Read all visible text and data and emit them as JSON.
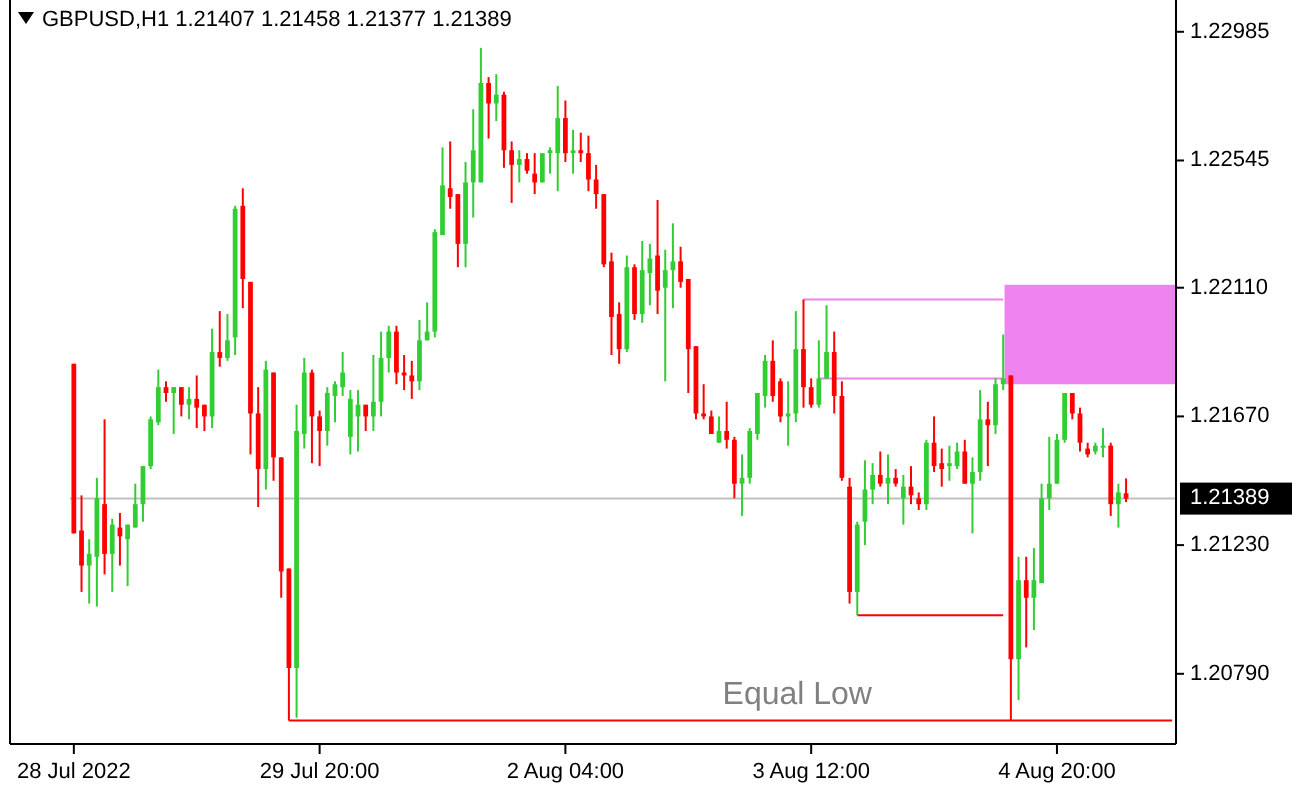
{
  "chart_data": {
    "type": "candlestick",
    "title": "GBPUSD,H1  1.21407 1.21458 1.21377 1.21389",
    "categories": [
      "28 Jul 2022",
      null,
      null,
      null,
      null,
      null,
      null,
      null,
      null,
      null,
      null,
      null,
      null,
      null,
      null,
      null,
      null,
      null,
      null,
      null,
      null,
      null,
      null,
      null,
      null,
      null,
      null,
      null,
      null,
      null,
      null,
      null,
      "29 Jul 20:00",
      null,
      null,
      null,
      null,
      null,
      null,
      null,
      null,
      null,
      null,
      null,
      null,
      null,
      null,
      null,
      null,
      null,
      null,
      null,
      null,
      null,
      null,
      null,
      null,
      null,
      null,
      null,
      null,
      null,
      null,
      null,
      "2 Aug 04:00",
      null,
      null,
      null,
      null,
      null,
      null,
      null,
      null,
      null,
      null,
      null,
      null,
      null,
      null,
      null,
      null,
      null,
      null,
      null,
      null,
      null,
      null,
      null,
      null,
      null,
      null,
      null,
      null,
      null,
      null,
      null,
      "3 Aug 12:00",
      null,
      null,
      null,
      null,
      null,
      null,
      null,
      null,
      null,
      null,
      null,
      null,
      null,
      null,
      null,
      null,
      null,
      null,
      null,
      null,
      null,
      null,
      null,
      null,
      null,
      null,
      null,
      null,
      null,
      null,
      null,
      "4 Aug 20:00",
      null,
      null,
      null,
      null,
      null,
      null,
      null,
      null,
      null,
      null,
      null,
      null,
      null,
      null,
      null
    ],
    "ohlc": [
      [
        1.2185,
        1.2185,
        1.2127,
        1.2127
      ],
      [
        1.2128,
        1.214,
        1.2107,
        1.2116
      ],
      [
        1.2116,
        1.2125,
        1.2103,
        1.212
      ],
      [
        1.2119,
        1.2146,
        1.2102,
        1.2139
      ],
      [
        1.2137,
        1.2166,
        1.2113,
        1.212
      ],
      [
        1.212,
        1.2132,
        1.2107,
        1.213
      ],
      [
        1.2129,
        1.2134,
        1.2116,
        1.2126
      ],
      [
        1.2125,
        1.213,
        1.2109,
        1.213
      ],
      [
        1.2129,
        1.2144,
        1.2129,
        1.2137
      ],
      [
        1.2137,
        1.215,
        1.2131,
        1.215
      ],
      [
        1.215,
        1.2167,
        1.2149,
        1.2166
      ],
      [
        1.2165,
        1.2183,
        1.2164,
        1.2177
      ],
      [
        1.2177,
        1.2179,
        1.2172,
        1.2175
      ],
      [
        1.2175,
        1.2177,
        1.2161,
        1.2177
      ],
      [
        1.2177,
        1.2177,
        1.2167,
        1.2171
      ],
      [
        1.2171,
        1.2177,
        1.2166,
        1.2173
      ],
      [
        1.2173,
        1.2181,
        1.2163,
        1.217
      ],
      [
        1.2171,
        1.2171,
        1.2162,
        1.2167
      ],
      [
        1.2167,
        1.2197,
        1.2163,
        1.2189
      ],
      [
        1.2189,
        1.2203,
        1.2184,
        1.2187
      ],
      [
        1.2187,
        1.2202,
        1.2186,
        1.2193
      ],
      [
        1.2194,
        1.2239,
        1.2188,
        1.2238
      ],
      [
        1.2239,
        1.2245,
        1.2204,
        1.2214
      ],
      [
        1.2213,
        1.2213,
        1.2154,
        1.2168
      ],
      [
        1.2168,
        1.2177,
        1.2136,
        1.2149
      ],
      [
        1.2149,
        1.2186,
        1.2142,
        1.2183
      ],
      [
        1.2182,
        1.2182,
        1.2145,
        1.2153
      ],
      [
        1.2153,
        1.2153,
        1.2105,
        1.2114
      ],
      [
        1.2115,
        1.2115,
        1.2063,
        1.2081
      ],
      [
        1.2081,
        1.2171,
        1.2064,
        1.2162
      ],
      [
        1.2161,
        1.2187,
        1.2156,
        1.2182
      ],
      [
        1.2182,
        1.2183,
        1.2151,
        1.2167
      ],
      [
        1.2167,
        1.2169,
        1.215,
        1.2162
      ],
      [
        1.2162,
        1.2177,
        1.2157,
        1.2175
      ],
      [
        1.2174,
        1.2179,
        1.2165,
        1.2178
      ],
      [
        1.2177,
        1.2189,
        1.2174,
        1.2182
      ],
      [
        1.216,
        1.2176,
        1.2154,
        1.2173
      ],
      [
        1.2167,
        1.2176,
        1.2155,
        1.2171
      ],
      [
        1.2171,
        1.2171,
        1.2162,
        1.2167
      ],
      [
        1.2167,
        1.2188,
        1.2162,
        1.2172
      ],
      [
        1.2172,
        1.2196,
        1.2167,
        1.2187
      ],
      [
        1.2187,
        1.2198,
        1.2182,
        1.2196
      ],
      [
        1.2196,
        1.2198,
        1.2178,
        1.2182
      ],
      [
        1.2182,
        1.2188,
        1.2176,
        1.2181
      ],
      [
        1.2181,
        1.2186,
        1.2173,
        1.2179
      ],
      [
        1.2179,
        1.22,
        1.2176,
        1.2193
      ],
      [
        1.2193,
        1.2206,
        1.2193,
        1.2196
      ],
      [
        1.2196,
        1.2231,
        1.2194,
        1.223
      ],
      [
        1.2229,
        1.2259,
        1.2229,
        1.2246
      ],
      [
        1.2245,
        1.2261,
        1.2238,
        1.2242
      ],
      [
        1.2243,
        1.2243,
        1.2218,
        1.2226
      ],
      [
        1.2226,
        1.2254,
        1.2218,
        1.2247
      ],
      [
        1.2247,
        1.2272,
        1.2235,
        1.2258
      ],
      [
        1.2247,
        1.2293,
        1.2247,
        1.2281
      ],
      [
        1.2281,
        1.2283,
        1.2262,
        1.2274
      ],
      [
        1.2274,
        1.2284,
        1.2268,
        1.2277
      ],
      [
        1.2277,
        1.2278,
        1.2252,
        1.2258
      ],
      [
        1.2258,
        1.2261,
        1.224,
        1.2253
      ],
      [
        1.2253,
        1.2258,
        1.2247,
        1.2255
      ],
      [
        1.2255,
        1.2257,
        1.225,
        1.2251
      ],
      [
        1.225,
        1.2257,
        1.2243,
        1.2247
      ],
      [
        1.2247,
        1.2257,
        1.2247,
        1.2257
      ],
      [
        1.2257,
        1.2259,
        1.225,
        1.2258
      ],
      [
        1.2257,
        1.228,
        1.2244,
        1.2269
      ],
      [
        1.2269,
        1.2275,
        1.2254,
        1.2257
      ],
      [
        1.2257,
        1.2265,
        1.225,
        1.2258
      ],
      [
        1.2258,
        1.2264,
        1.2254,
        1.2257
      ],
      [
        1.2257,
        1.2263,
        1.2244,
        1.2248
      ],
      [
        1.2248,
        1.2253,
        1.2238,
        1.2243
      ],
      [
        1.2243,
        1.2243,
        1.2218,
        1.2219
      ],
      [
        1.222,
        1.2223,
        1.2188,
        1.2201
      ],
      [
        1.2202,
        1.2206,
        1.2185,
        1.219
      ],
      [
        1.219,
        1.2222,
        1.2189,
        1.2218
      ],
      [
        1.2218,
        1.2219,
        1.22,
        1.2202
      ],
      [
        1.2202,
        1.2227,
        1.2199,
        1.2217
      ],
      [
        1.2216,
        1.2226,
        1.2205,
        1.2221
      ],
      [
        1.2222,
        1.2241,
        1.2202,
        1.221
      ],
      [
        1.2211,
        1.2224,
        1.2179,
        1.2217
      ],
      [
        1.2217,
        1.2233,
        1.2204,
        1.222
      ],
      [
        1.222,
        1.2225,
        1.2211,
        1.2213
      ],
      [
        1.2214,
        1.2214,
        1.2175,
        1.219
      ],
      [
        1.2191,
        1.2191,
        1.2166,
        1.2168
      ],
      [
        1.2168,
        1.2178,
        1.2166,
        1.2167
      ],
      [
        1.2167,
        1.2169,
        1.2161,
        1.2161
      ],
      [
        1.2158,
        1.2167,
        1.2158,
        1.2162
      ],
      [
        1.2162,
        1.2172,
        1.2156,
        1.2159
      ],
      [
        1.2159,
        1.216,
        1.2139,
        1.2144
      ],
      [
        1.2144,
        1.2154,
        1.2133,
        1.2146
      ],
      [
        1.2146,
        1.2163,
        1.2144,
        1.2162
      ],
      [
        1.2161,
        1.2175,
        1.2159,
        1.2175
      ],
      [
        1.2174,
        1.2188,
        1.217,
        1.2186
      ],
      [
        1.2186,
        1.2193,
        1.2172,
        1.2174
      ],
      [
        1.2179,
        1.218,
        1.2165,
        1.2167
      ],
      [
        1.2167,
        1.2179,
        1.2157,
        1.2168
      ],
      [
        1.2168,
        1.2203,
        1.2165,
        1.219
      ],
      [
        1.219,
        1.2207,
        1.217,
        1.2177
      ],
      [
        1.2177,
        1.218,
        1.217,
        1.2171
      ],
      [
        1.2171,
        1.2193,
        1.217,
        1.218
      ],
      [
        1.218,
        1.2205,
        1.218,
        1.2189
      ],
      [
        1.2189,
        1.2196,
        1.2168,
        1.2174
      ],
      [
        1.2174,
        1.2179,
        1.2145,
        1.2146
      ],
      [
        1.2143,
        1.2146,
        1.2103,
        1.2107
      ],
      [
        1.2107,
        1.2131,
        1.2099,
        1.213
      ],
      [
        1.2131,
        1.2152,
        1.2123,
        1.2142
      ],
      [
        1.2142,
        1.2151,
        1.2137,
        1.2147
      ],
      [
        1.2147,
        1.2155,
        1.2143,
        1.2144
      ],
      [
        1.2144,
        1.2154,
        1.2137,
        1.2146
      ],
      [
        1.2146,
        1.2149,
        1.2143,
        1.2144
      ],
      [
        1.2139,
        1.2147,
        1.213,
        1.2143
      ],
      [
        1.2143,
        1.215,
        1.2137,
        1.214
      ],
      [
        1.2139,
        1.2141,
        1.2135,
        1.2137
      ],
      [
        1.2137,
        1.2159,
        1.2135,
        1.2158
      ],
      [
        1.2158,
        1.2167,
        1.2148,
        1.215
      ],
      [
        1.2151,
        1.2156,
        1.2143,
        1.2149
      ],
      [
        1.215,
        1.2157,
        1.2145,
        1.2151
      ],
      [
        1.215,
        1.2158,
        1.2149,
        1.2155
      ],
      [
        1.2155,
        1.2159,
        1.2144,
        1.2144
      ],
      [
        1.2144,
        1.2153,
        1.2127,
        1.2148
      ],
      [
        1.2148,
        1.2176,
        1.2145,
        1.2166
      ],
      [
        1.2166,
        1.2172,
        1.215,
        1.2164
      ],
      [
        1.2164,
        1.218,
        1.2161,
        1.2178
      ],
      [
        1.2178,
        1.2195,
        1.2176,
        1.218
      ],
      [
        1.2181,
        1.2181,
        1.2063,
        1.2084
      ],
      [
        1.2084,
        1.2119,
        1.207,
        1.2111
      ],
      [
        1.2111,
        1.2119,
        1.2088,
        1.2105
      ],
      [
        1.2105,
        1.2122,
        1.2094,
        1.2111
      ],
      [
        1.211,
        1.2144,
        1.211,
        1.2139
      ],
      [
        1.2139,
        1.216,
        1.2135,
        1.2144
      ],
      [
        1.2144,
        1.2161,
        1.2144,
        1.2159
      ],
      [
        1.2159,
        1.2175,
        1.2158,
        1.2175
      ],
      [
        1.2175,
        1.2175,
        1.2166,
        1.2168
      ],
      [
        1.2168,
        1.217,
        1.2155,
        1.2158
      ],
      [
        1.2156,
        1.2158,
        1.2153,
        1.2154
      ],
      [
        1.2155,
        1.2158,
        1.2154,
        1.2157
      ],
      [
        1.2157,
        1.2163,
        1.2153,
        1.2157
      ],
      [
        1.2157,
        1.2158,
        1.2133,
        1.2137
      ],
      [
        1.2137,
        1.2144,
        1.2129,
        1.2141
      ],
      [
        1.21407,
        1.21458,
        1.21377,
        1.21389
      ],
      null,
      null,
      null,
      null,
      null,
      null
    ],
    "colors": [
      "#ff0000",
      "#ff0000",
      "#32cd32",
      "#32cd32",
      "#ff0000",
      "#32cd32",
      "#ff0000",
      "#32cd32",
      "#32cd32",
      "#32cd32",
      "#32cd32",
      "#32cd32",
      "#ff0000",
      "#32cd32",
      "#ff0000",
      "#32cd32",
      "#ff0000",
      "#ff0000",
      "#32cd32",
      "#ff0000",
      "#32cd32",
      "#32cd32",
      "#ff0000",
      "#ff0000",
      "#ff0000",
      "#32cd32",
      "#ff0000",
      "#ff0000",
      "#ff0000",
      "#32cd32",
      "#32cd32",
      "#ff0000",
      "#ff0000",
      "#32cd32",
      "#32cd32",
      "#32cd32",
      "#32cd32",
      "#32cd32",
      "#ff0000",
      "#32cd32",
      "#32cd32",
      "#32cd32",
      "#ff0000",
      "#ff0000",
      "#ff0000",
      "#32cd32",
      "#32cd32",
      "#32cd32",
      "#32cd32",
      "#ff0000",
      "#ff0000",
      "#32cd32",
      "#32cd32",
      "#32cd32",
      "#ff0000",
      "#32cd32",
      "#ff0000",
      "#ff0000",
      "#32cd32",
      "#ff0000",
      "#ff0000",
      "#32cd32",
      "#32cd32",
      "#32cd32",
      "#ff0000",
      "#32cd32",
      "#ff0000",
      "#ff0000",
      "#ff0000",
      "#ff0000",
      "#ff0000",
      "#ff0000",
      "#32cd32",
      "#ff0000",
      "#32cd32",
      "#32cd32",
      "#ff0000",
      "#32cd32",
      "#32cd32",
      "#ff0000",
      "#ff0000",
      "#ff0000",
      "#ff0000",
      "#ff0000",
      "#32cd32",
      "#ff0000",
      "#ff0000",
      "#32cd32",
      "#32cd32",
      "#32cd32",
      "#32cd32",
      "#ff0000",
      "#ff0000",
      "#32cd32",
      "#32cd32",
      "#ff0000",
      "#ff0000",
      "#32cd32",
      "#32cd32",
      "#ff0000",
      "#ff0000",
      "#ff0000",
      "#32cd32",
      "#32cd32",
      "#32cd32",
      "#ff0000",
      "#32cd32",
      "#ff0000",
      "#32cd32",
      "#ff0000",
      "#ff0000",
      "#32cd32",
      "#ff0000",
      "#ff0000",
      "#32cd32",
      "#32cd32",
      "#ff0000",
      "#32cd32",
      "#32cd32",
      "#ff0000",
      "#32cd32",
      "#32cd32",
      "#ff0000",
      "#32cd32",
      "#ff0000",
      "#32cd32",
      "#32cd32",
      "#32cd32",
      "#32cd32",
      "#32cd32",
      "#ff0000",
      "#ff0000",
      "#ff0000",
      "#32cd32",
      "#32cd32",
      "#ff0000",
      "#32cd32",
      "#ff0000",
      null,
      null,
      null,
      null,
      null,
      null
    ],
    "series": [
      {
        "type": "line",
        "color": "#ee82ee",
        "values": [
          null,
          null,
          null,
          null,
          null,
          null,
          null,
          null,
          null,
          null,
          null,
          null,
          null,
          null,
          null,
          null,
          null,
          null,
          null,
          null,
          null,
          null,
          null,
          null,
          null,
          null,
          null,
          null,
          null,
          null,
          null,
          null,
          null,
          null,
          null,
          null,
          null,
          null,
          null,
          null,
          null,
          null,
          null,
          null,
          null,
          null,
          null,
          null,
          null,
          null,
          null,
          null,
          null,
          null,
          null,
          null,
          null,
          null,
          null,
          null,
          null,
          null,
          null,
          null,
          null,
          null,
          null,
          null,
          null,
          null,
          null,
          null,
          null,
          null,
          null,
          null,
          null,
          null,
          null,
          null,
          null,
          null,
          null,
          null,
          null,
          null,
          null,
          null,
          null,
          null,
          null,
          null,
          null,
          null,
          null,
          1.2207,
          1.2207,
          1.2207,
          1.2207,
          1.2207,
          1.2207,
          1.2207,
          1.2207,
          1.2207,
          1.2207,
          1.2207,
          1.2207,
          1.2207,
          1.2207,
          1.2207,
          1.2207,
          1.2207,
          1.2207,
          1.2207,
          1.2207,
          1.2207,
          1.2207,
          1.2207,
          1.2207,
          1.2207,
          1.2207,
          1.2207,
          null,
          null,
          null,
          null,
          null,
          null,
          null,
          null,
          null,
          null,
          null,
          null,
          null,
          null,
          null,
          null,
          null,
          null,
          null,
          null,
          null,
          null
        ]
      },
      {
        "type": "line",
        "color": "#ee82ee",
        "values": [
          null,
          null,
          null,
          null,
          null,
          null,
          null,
          null,
          null,
          null,
          null,
          null,
          null,
          null,
          null,
          null,
          null,
          null,
          null,
          null,
          null,
          null,
          null,
          null,
          null,
          null,
          null,
          null,
          null,
          null,
          null,
          null,
          null,
          null,
          null,
          null,
          null,
          null,
          null,
          null,
          null,
          null,
          null,
          null,
          null,
          null,
          null,
          null,
          null,
          null,
          null,
          null,
          null,
          null,
          null,
          null,
          null,
          null,
          null,
          null,
          null,
          null,
          null,
          null,
          null,
          null,
          null,
          null,
          null,
          null,
          null,
          null,
          null,
          null,
          null,
          null,
          null,
          null,
          null,
          null,
          null,
          null,
          null,
          null,
          null,
          null,
          null,
          null,
          null,
          null,
          null,
          null,
          null,
          null,
          null,
          null,
          null,
          1.218,
          1.218,
          1.218,
          1.218,
          1.218,
          1.218,
          1.218,
          1.218,
          1.218,
          1.218,
          1.218,
          1.218,
          1.218,
          1.218,
          1.218,
          1.218,
          1.218,
          1.218,
          1.218,
          1.218,
          1.218,
          1.218,
          1.218,
          1.218,
          1.218,
          null,
          null,
          null,
          null,
          null,
          null,
          null,
          null,
          null,
          null,
          null,
          null,
          null,
          null,
          null,
          null,
          null,
          null,
          null,
          null,
          null,
          null
        ]
      },
      {
        "type": "line",
        "color": "#ff0000",
        "values": [
          null,
          null,
          null,
          null,
          null,
          null,
          null,
          null,
          null,
          null,
          null,
          null,
          null,
          null,
          null,
          null,
          null,
          null,
          null,
          null,
          null,
          null,
          null,
          null,
          null,
          null,
          null,
          null,
          null,
          null,
          null,
          null,
          null,
          null,
          null,
          null,
          null,
          null,
          null,
          null,
          null,
          null,
          null,
          null,
          null,
          null,
          null,
          null,
          null,
          null,
          null,
          null,
          null,
          null,
          null,
          null,
          null,
          null,
          null,
          null,
          null,
          null,
          null,
          null,
          null,
          null,
          null,
          null,
          null,
          null,
          null,
          null,
          null,
          null,
          null,
          null,
          null,
          null,
          null,
          null,
          null,
          null,
          null,
          null,
          null,
          null,
          null,
          null,
          null,
          null,
          null,
          null,
          null,
          null,
          null,
          null,
          null,
          null,
          null,
          null,
          null,
          null,
          1.2099,
          1.2099,
          1.2099,
          1.2099,
          1.2099,
          1.2099,
          1.2099,
          1.2099,
          1.2099,
          1.2099,
          1.2099,
          1.2099,
          1.2099,
          1.2099,
          1.2099,
          1.2099,
          1.2099,
          1.2099,
          1.2099,
          1.2099,
          null,
          null,
          null,
          null,
          null,
          null,
          null,
          null,
          null,
          null,
          null,
          null,
          null,
          null,
          null,
          null,
          null,
          null,
          null,
          null,
          null,
          null
        ]
      },
      {
        "type": "line",
        "color": "#ff0000",
        "values": [
          null,
          null,
          null,
          null,
          null,
          null,
          null,
          null,
          null,
          null,
          null,
          null,
          null,
          null,
          null,
          null,
          null,
          null,
          null,
          null,
          null,
          null,
          null,
          null,
          null,
          null,
          null,
          null,
          1.2063,
          1.2063,
          1.2063,
          1.2063,
          1.2063,
          1.2063,
          1.2063,
          1.2063,
          1.2063,
          1.2063,
          1.2063,
          1.2063,
          1.2063,
          1.2063,
          1.2063,
          1.2063,
          1.2063,
          1.2063,
          1.2063,
          1.2063,
          1.2063,
          1.2063,
          1.2063,
          1.2063,
          1.2063,
          1.2063,
          1.2063,
          1.2063,
          1.2063,
          1.2063,
          1.2063,
          1.2063,
          1.2063,
          1.2063,
          1.2063,
          1.2063,
          1.2063,
          1.2063,
          1.2063,
          1.2063,
          1.2063,
          1.2063,
          1.2063,
          1.2063,
          1.2063,
          1.2063,
          1.2063,
          1.2063,
          1.2063,
          1.2063,
          1.2063,
          1.2063,
          1.2063,
          1.2063,
          1.2063,
          1.2063,
          1.2063,
          1.2063,
          1.2063,
          1.2063,
          1.2063,
          1.2063,
          1.2063,
          1.2063,
          1.2063,
          1.2063,
          1.2063,
          1.2063,
          1.2063,
          1.2063,
          1.2063,
          1.2063,
          1.2063,
          1.2063,
          1.2063,
          1.2063,
          1.2063,
          1.2063,
          1.2063,
          1.2063,
          1.2063,
          1.2063,
          1.2063,
          1.2063,
          1.2063,
          1.2063,
          1.2063,
          1.2063,
          1.2063,
          1.2063,
          1.2063,
          1.2063,
          1.2063,
          1.2063,
          1.2063,
          1.2063,
          1.2063,
          1.2063,
          1.2063,
          1.2063,
          1.2063,
          1.2063,
          1.2063,
          1.2063,
          1.2063,
          1.2063,
          1.2063,
          1.2063,
          1.2063,
          1.2063,
          1.2063,
          1.2063,
          1.2063,
          1.2063,
          1.2063,
          1.2063
        ]
      }
    ],
    "ylim": [
      1.2055,
      1.2308
    ],
    "yticks": [
      1.22985,
      1.22545,
      {
        "value": 1.2211,
        "label": "1.22110"
      },
      {
        "value": 1.2167,
        "label": "1.21670"
      },
      {
        "value": 1.2123,
        "label": "1.21230"
      },
      {
        "value": 1.2079,
        "label": "1.20790"
      }
    ],
    "bands": [
      {
        "axis": "y",
        "from": 1.2178,
        "to": 1.2212,
        "color": "#ee82ee"
      }
    ],
    "ref_lines": [
      {
        "axis": "y",
        "value": 1.21389,
        "label": "1.21389",
        "color": "#c0c0c0"
      }
    ],
    "annotations": [
      "Equal Low"
    ]
  }
}
